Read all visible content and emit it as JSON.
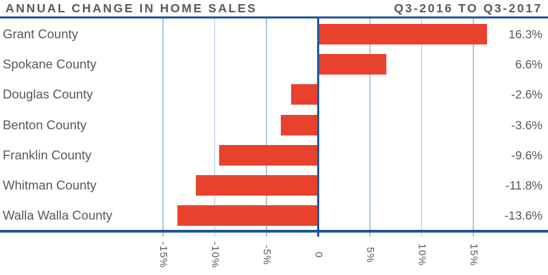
{
  "header": {
    "title": "ANNUAL CHANGE IN HOME SALES",
    "period": "Q3-2016 TO Q3-2017"
  },
  "chart_data": {
    "type": "bar",
    "orientation": "horizontal",
    "title": "ANNUAL CHANGE IN HOME SALES",
    "subtitle": "Q3-2016 TO Q3-2017",
    "categories": [
      "Grant County",
      "Spokane County",
      "Douglas County",
      "Benton County",
      "Franklin County",
      "Whitman County",
      "Walla Walla County"
    ],
    "values": [
      16.3,
      6.6,
      -2.6,
      -3.6,
      -9.6,
      -11.8,
      -13.6
    ],
    "value_labels": [
      "16.3%",
      "6.6%",
      "-2.6%",
      "-3.6%",
      "-9.6%",
      "-11.8%",
      "-13.6%"
    ],
    "x_ticks": [
      -15,
      -10,
      -5,
      0,
      5,
      10,
      15
    ],
    "x_tick_labels": [
      "-15%",
      "-10%",
      "-5%",
      "0",
      "5%",
      "10%",
      "15%"
    ],
    "xlabel": "",
    "ylabel": "",
    "xlim": [
      -15,
      15
    ],
    "grid": true,
    "legend": false,
    "unit": "%",
    "colors": {
      "bar": "#e8422e",
      "axis": "#1f569b",
      "gridline": "#a9c6e3",
      "text": "#57585a"
    }
  }
}
